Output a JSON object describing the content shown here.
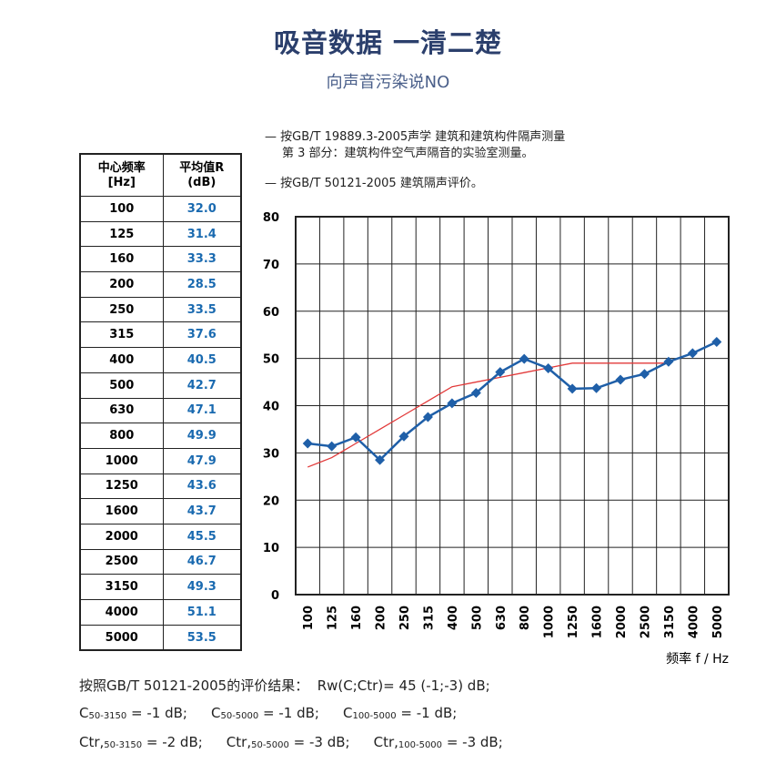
{
  "header": {
    "title": "吸音数据 一清二楚",
    "subtitle": "向声音污染说NO"
  },
  "notes": [
    "— 按GB/T 19889.3-2005声学  建筑和建筑构件隔声测量",
    "第 3 部分：建筑构件空气声隔音的实验室测量。",
    "— 按GB/T 50121-2005  建筑隔声评价。"
  ],
  "table": {
    "columns": [
      "中心频率",
      "[Hz]",
      "平均值R",
      "(dB)"
    ]
  },
  "chart_data": {
    "type": "line",
    "categories": [
      "100",
      "125",
      "160",
      "200",
      "250",
      "315",
      "400",
      "500",
      "630",
      "800",
      "1000",
      "1250",
      "1600",
      "2000",
      "2500",
      "3150",
      "4000",
      "5000"
    ],
    "series": [
      {
        "color": "#1f5fa8",
        "values": [
          32.0,
          31.4,
          33.3,
          28.5,
          33.5,
          37.6,
          40.5,
          42.7,
          47.1,
          49.9,
          47.9,
          43.6,
          43.7,
          45.5,
          46.7,
          49.3,
          51.1,
          53.5
        ],
        "value_labels": [
          "32.0",
          "31.4",
          "33.3",
          "28.5",
          "33.5",
          "37.6",
          "40.5",
          "42.7",
          "47.1",
          "49.9",
          "47.9",
          "43.6",
          "43.7",
          "45.5",
          "46.7",
          "49.3",
          "51.1",
          "53.5"
        ]
      },
      {
        "color": "#e23a3a",
        "values": [
          27,
          29,
          32,
          35,
          38,
          41,
          44,
          45,
          46,
          47,
          48,
          49,
          49,
          49,
          49,
          49,
          null,
          null
        ]
      }
    ],
    "ylim": [
      0,
      80
    ],
    "yticks": [
      0,
      10,
      20,
      30,
      40,
      50,
      60,
      70,
      80
    ],
    "grid": true,
    "x_label": "频率 f / Hz"
  },
  "results": {
    "line1": "按照GB/T 50121-2005的评价结果：  Rw(C;Ctr)= 45 (-1;-3) dB;",
    "line2": [
      {
        "symbol": "C",
        "sub": "50-3150",
        "value": " = -1 dB;"
      },
      {
        "symbol": "C",
        "sub": "50-5000",
        "value": " = -1 dB;"
      },
      {
        "symbol": "C",
        "sub": "100-5000",
        "value": " = -1 dB;"
      }
    ],
    "line3": [
      {
        "symbol": "Ctr,",
        "sub": "50-3150",
        "value": " = -2 dB;"
      },
      {
        "symbol": "Ctr,",
        "sub": "50-5000",
        "value": " = -3 dB;"
      },
      {
        "symbol": "Ctr,",
        "sub": "100-5000",
        "value": " = -3 dB;"
      }
    ]
  }
}
